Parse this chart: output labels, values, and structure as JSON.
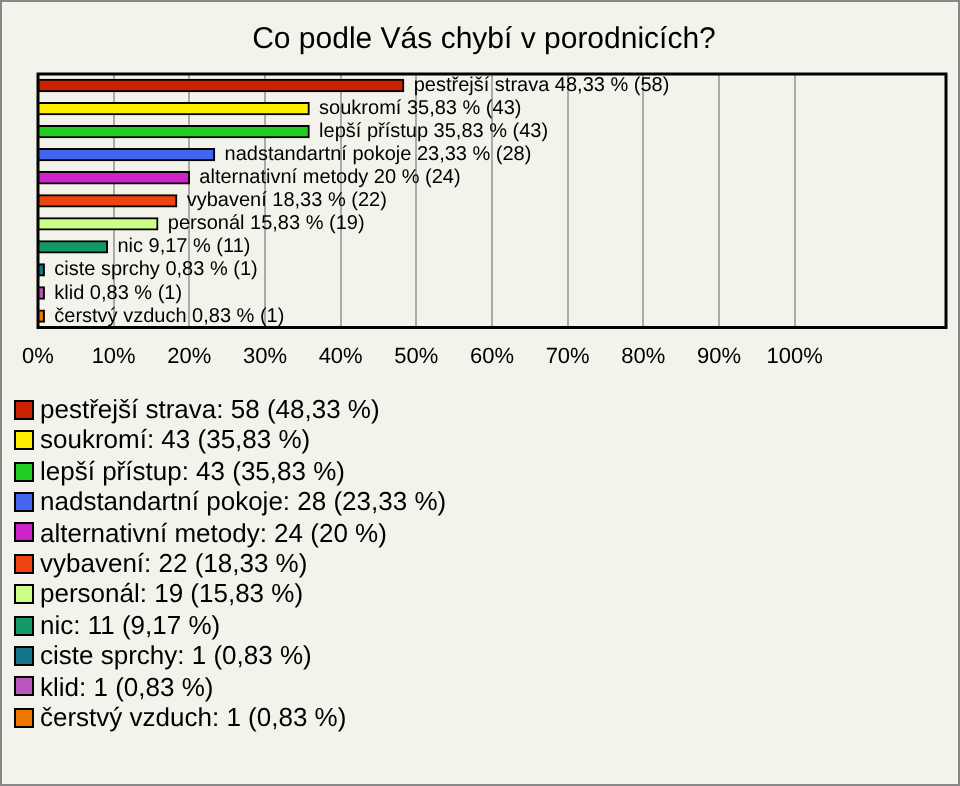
{
  "chart_data": {
    "type": "bar",
    "orientation": "horizontal",
    "title": "Co podle Vás chybí v porodnicích?",
    "categories": [
      null,
      null,
      null,
      null,
      null,
      null,
      null,
      null,
      null,
      null,
      null
    ],
    "series": [
      {
        "name": "pestřejší strava: 58 (48,33 %)",
        "color": "#cc2200",
        "values": [
          48.33,
          null,
          null,
          null,
          null,
          null,
          null,
          null,
          null,
          null,
          null
        ],
        "value_labels": [
          "pestřejší strava 48,33 % (58)",
          null,
          null,
          null,
          null,
          null,
          null,
          null,
          null,
          null,
          null
        ]
      },
      {
        "name": "soukromí: 43 (35,83 %)",
        "color": "#ffee00",
        "values": [
          null,
          35.83,
          null,
          null,
          null,
          null,
          null,
          null,
          null,
          null,
          null
        ],
        "value_labels": [
          null,
          "soukromí 35,83 % (43)",
          null,
          null,
          null,
          null,
          null,
          null,
          null,
          null,
          null
        ]
      },
      {
        "name": "lepší přístup: 43 (35,83 %)",
        "color": "#22cc22",
        "values": [
          null,
          null,
          35.83,
          null,
          null,
          null,
          null,
          null,
          null,
          null,
          null
        ],
        "value_labels": [
          null,
          null,
          "lepší přístup 35,83 % (43)",
          null,
          null,
          null,
          null,
          null,
          null,
          null,
          null
        ]
      },
      {
        "name": "nadstandartní pokoje: 28 (23,33 %)",
        "color": "#4466ee",
        "values": [
          null,
          null,
          null,
          23.33,
          null,
          null,
          null,
          null,
          null,
          null,
          null
        ],
        "value_labels": [
          null,
          null,
          null,
          "nadstandartní pokoje 23,33 % (28)",
          null,
          null,
          null,
          null,
          null,
          null,
          null
        ]
      },
      {
        "name": "alternativní metody: 24 (20 %)",
        "color": "#cc22cc",
        "values": [
          null,
          null,
          null,
          null,
          20,
          null,
          null,
          null,
          null,
          null,
          null
        ],
        "value_labels": [
          null,
          null,
          null,
          null,
          "alternativní metody 20 % (24)",
          null,
          null,
          null,
          null,
          null,
          null
        ]
      },
      {
        "name": "vybavení: 22 (18,33 %)",
        "color": "#ee4411",
        "values": [
          null,
          null,
          null,
          null,
          null,
          18.33,
          null,
          null,
          null,
          null,
          null
        ],
        "value_labels": [
          null,
          null,
          null,
          null,
          null,
          "vybavení 18,33 % (22)",
          null,
          null,
          null,
          null,
          null
        ]
      },
      {
        "name": "personál: 19 (15,83 %)",
        "color": "#ccff88",
        "values": [
          null,
          null,
          null,
          null,
          null,
          null,
          15.83,
          null,
          null,
          null,
          null
        ],
        "value_labels": [
          null,
          null,
          null,
          null,
          null,
          null,
          "personál 15,83 % (19)",
          null,
          null,
          null,
          null
        ]
      },
      {
        "name": "nic: 11 (9,17 %)",
        "color": "#119966",
        "values": [
          null,
          null,
          null,
          null,
          null,
          null,
          null,
          9.17,
          null,
          null,
          null
        ],
        "value_labels": [
          null,
          null,
          null,
          null,
          null,
          null,
          null,
          "nic 9,17 % (11)",
          null,
          null,
          null
        ]
      },
      {
        "name": "ciste sprchy: 1 (0,83 %)",
        "color": "#117788",
        "values": [
          null,
          null,
          null,
          null,
          null,
          null,
          null,
          null,
          0.83,
          null,
          null
        ],
        "value_labels": [
          null,
          null,
          null,
          null,
          null,
          null,
          null,
          null,
          "ciste sprchy 0,83 % (1)",
          null,
          null
        ]
      },
      {
        "name": "klid: 1 (0,83 %)",
        "color": "#bb55bb",
        "values": [
          null,
          null,
          null,
          null,
          null,
          null,
          null,
          null,
          null,
          0.83,
          null
        ],
        "value_labels": [
          null,
          null,
          null,
          null,
          null,
          null,
          null,
          null,
          null,
          "klid 0,83 % (1)",
          null
        ]
      },
      {
        "name": "čerstvý vzduch: 1 (0,83 %)",
        "color": "#ee7700",
        "values": [
          null,
          null,
          null,
          null,
          null,
          null,
          null,
          null,
          null,
          null,
          0.83
        ],
        "value_labels": [
          null,
          null,
          null,
          null,
          null,
          null,
          null,
          null,
          null,
          null,
          "čerstvý vzduch 0,83 % (1)"
        ]
      }
    ],
    "xlim": [
      0,
      120
    ],
    "xticks": [
      {
        "value": 0,
        "label": "0%"
      },
      {
        "value": 10,
        "label": "10%"
      },
      {
        "value": 20,
        "label": "20%"
      },
      {
        "value": 30,
        "label": "30%"
      },
      {
        "value": 40,
        "label": "40%"
      },
      {
        "value": 50,
        "label": "50%"
      },
      {
        "value": 60,
        "label": "60%"
      },
      {
        "value": 70,
        "label": "70%"
      },
      {
        "value": 80,
        "label": "80%"
      },
      {
        "value": 90,
        "label": "90%"
      },
      {
        "value": 100,
        "label": "100%"
      }
    ],
    "grid": "x",
    "legend": "bottom",
    "tick_labels": "x"
  }
}
